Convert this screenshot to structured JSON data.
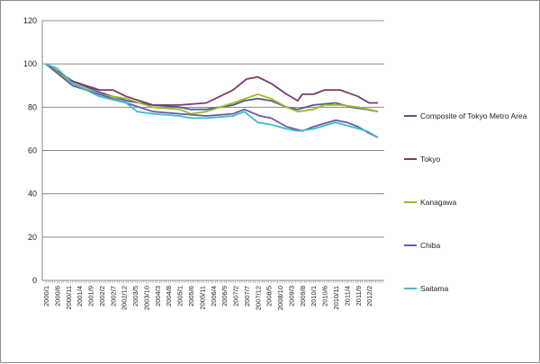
{
  "chart_data": {
    "type": "line",
    "title": "",
    "xlabel": "",
    "ylabel": "",
    "ylim": [
      0,
      120
    ],
    "yticks": [
      0,
      20,
      40,
      60,
      80,
      100,
      120
    ],
    "grid": "horizontal",
    "legend": "right",
    "x_start": "2000/1",
    "x_tick_labels": [
      "2000/1",
      "2000/6",
      "2000/11",
      "2001/4",
      "2001/9",
      "2002/2",
      "2002/7",
      "2002/12",
      "2003/5",
      "2003/10",
      "2004/3",
      "2004/8",
      "2005/1",
      "2005/6",
      "2005/11",
      "2006/4",
      "2006/9",
      "2007/2",
      "2007/7",
      "2007/12",
      "2008/5",
      "2008/10",
      "2009/3",
      "2009/8",
      "2010/1",
      "2010/6",
      "2010/11",
      "2011/4",
      "2011/9",
      "2012/2"
    ],
    "series": [
      {
        "name": "Composite of Tokyo Metro Area",
        "color": "#4e5a92",
        "points": [
          [
            "2000/1",
            100
          ],
          [
            "2001/1",
            92
          ],
          [
            "2002/1",
            87
          ],
          [
            "2003/1",
            83
          ],
          [
            "2004/1",
            81
          ],
          [
            "2005/1",
            80
          ],
          [
            "2005/6",
            79
          ],
          [
            "2006/1",
            79
          ],
          [
            "2007/1",
            81
          ],
          [
            "2007/6",
            83
          ],
          [
            "2007/12",
            84
          ],
          [
            "2008/6",
            83
          ],
          [
            "2009/1",
            80
          ],
          [
            "2009/6",
            79
          ],
          [
            "2010/1",
            81
          ],
          [
            "2010/11",
            82
          ],
          [
            "2011/6",
            80
          ],
          [
            "2012/1",
            79
          ],
          [
            "2012/6",
            78
          ]
        ]
      },
      {
        "name": "Tokyo",
        "color": "#7e3a6e",
        "points": [
          [
            "2000/1",
            100
          ],
          [
            "2001/1",
            92
          ],
          [
            "2002/1",
            88
          ],
          [
            "2002/7",
            88
          ],
          [
            "2003/1",
            85
          ],
          [
            "2004/1",
            81
          ],
          [
            "2005/1",
            81
          ],
          [
            "2006/1",
            82
          ],
          [
            "2007/1",
            88
          ],
          [
            "2007/7",
            93
          ],
          [
            "2007/12",
            94
          ],
          [
            "2008/6",
            91
          ],
          [
            "2009/1",
            86
          ],
          [
            "2009/6",
            83
          ],
          [
            "2009/8",
            86
          ],
          [
            "2010/1",
            86
          ],
          [
            "2010/6",
            88
          ],
          [
            "2011/1",
            88
          ],
          [
            "2011/9",
            85
          ],
          [
            "2012/2",
            82
          ],
          [
            "2012/6",
            82
          ]
        ]
      },
      {
        "name": "Kanagawa",
        "color": "#9bbb26",
        "points": [
          [
            "2000/1",
            100
          ],
          [
            "2001/1",
            91
          ],
          [
            "2002/1",
            86
          ],
          [
            "2003/1",
            84
          ],
          [
            "2004/1",
            80
          ],
          [
            "2005/1",
            79
          ],
          [
            "2005/6",
            77
          ],
          [
            "2006/1",
            78
          ],
          [
            "2007/1",
            82
          ],
          [
            "2007/12",
            86
          ],
          [
            "2008/6",
            84
          ],
          [
            "2009/1",
            80
          ],
          [
            "2009/6",
            78
          ],
          [
            "2010/1",
            79
          ],
          [
            "2010/6",
            81
          ],
          [
            "2011/1",
            81
          ],
          [
            "2011/9",
            80
          ],
          [
            "2012/2",
            79
          ],
          [
            "2012/6",
            78
          ]
        ]
      },
      {
        "name": "Chiba",
        "color": "#6a5aa6",
        "points": [
          [
            "2000/1",
            100
          ],
          [
            "2001/1",
            90
          ],
          [
            "2002/1",
            86
          ],
          [
            "2003/1",
            82
          ],
          [
            "2004/1",
            78
          ],
          [
            "2005/1",
            77
          ],
          [
            "2006/1",
            76
          ],
          [
            "2007/1",
            77
          ],
          [
            "2007/6",
            79
          ],
          [
            "2008/1",
            76
          ],
          [
            "2008/6",
            75
          ],
          [
            "2009/1",
            71
          ],
          [
            "2009/8",
            69
          ],
          [
            "2010/1",
            71
          ],
          [
            "2010/11",
            74
          ],
          [
            "2011/4",
            73
          ],
          [
            "2011/9",
            71
          ],
          [
            "2012/2",
            68
          ],
          [
            "2012/6",
            66
          ]
        ]
      },
      {
        "name": "Saitama",
        "color": "#3bbdc6",
        "points": [
          [
            "2000/1",
            100
          ],
          [
            "2000/6",
            98
          ],
          [
            "2001/1",
            91
          ],
          [
            "2002/1",
            85
          ],
          [
            "2003/1",
            82
          ],
          [
            "2003/6",
            78
          ],
          [
            "2004/1",
            77
          ],
          [
            "2005/1",
            76
          ],
          [
            "2005/6",
            75
          ],
          [
            "2006/1",
            75
          ],
          [
            "2007/1",
            76
          ],
          [
            "2007/6",
            78
          ],
          [
            "2007/12",
            73
          ],
          [
            "2008/6",
            72
          ],
          [
            "2009/1",
            70
          ],
          [
            "2009/6",
            69
          ],
          [
            "2010/1",
            70
          ],
          [
            "2010/11",
            73
          ],
          [
            "2011/6",
            71
          ],
          [
            "2012/1",
            69
          ],
          [
            "2012/6",
            66
          ]
        ]
      }
    ]
  }
}
